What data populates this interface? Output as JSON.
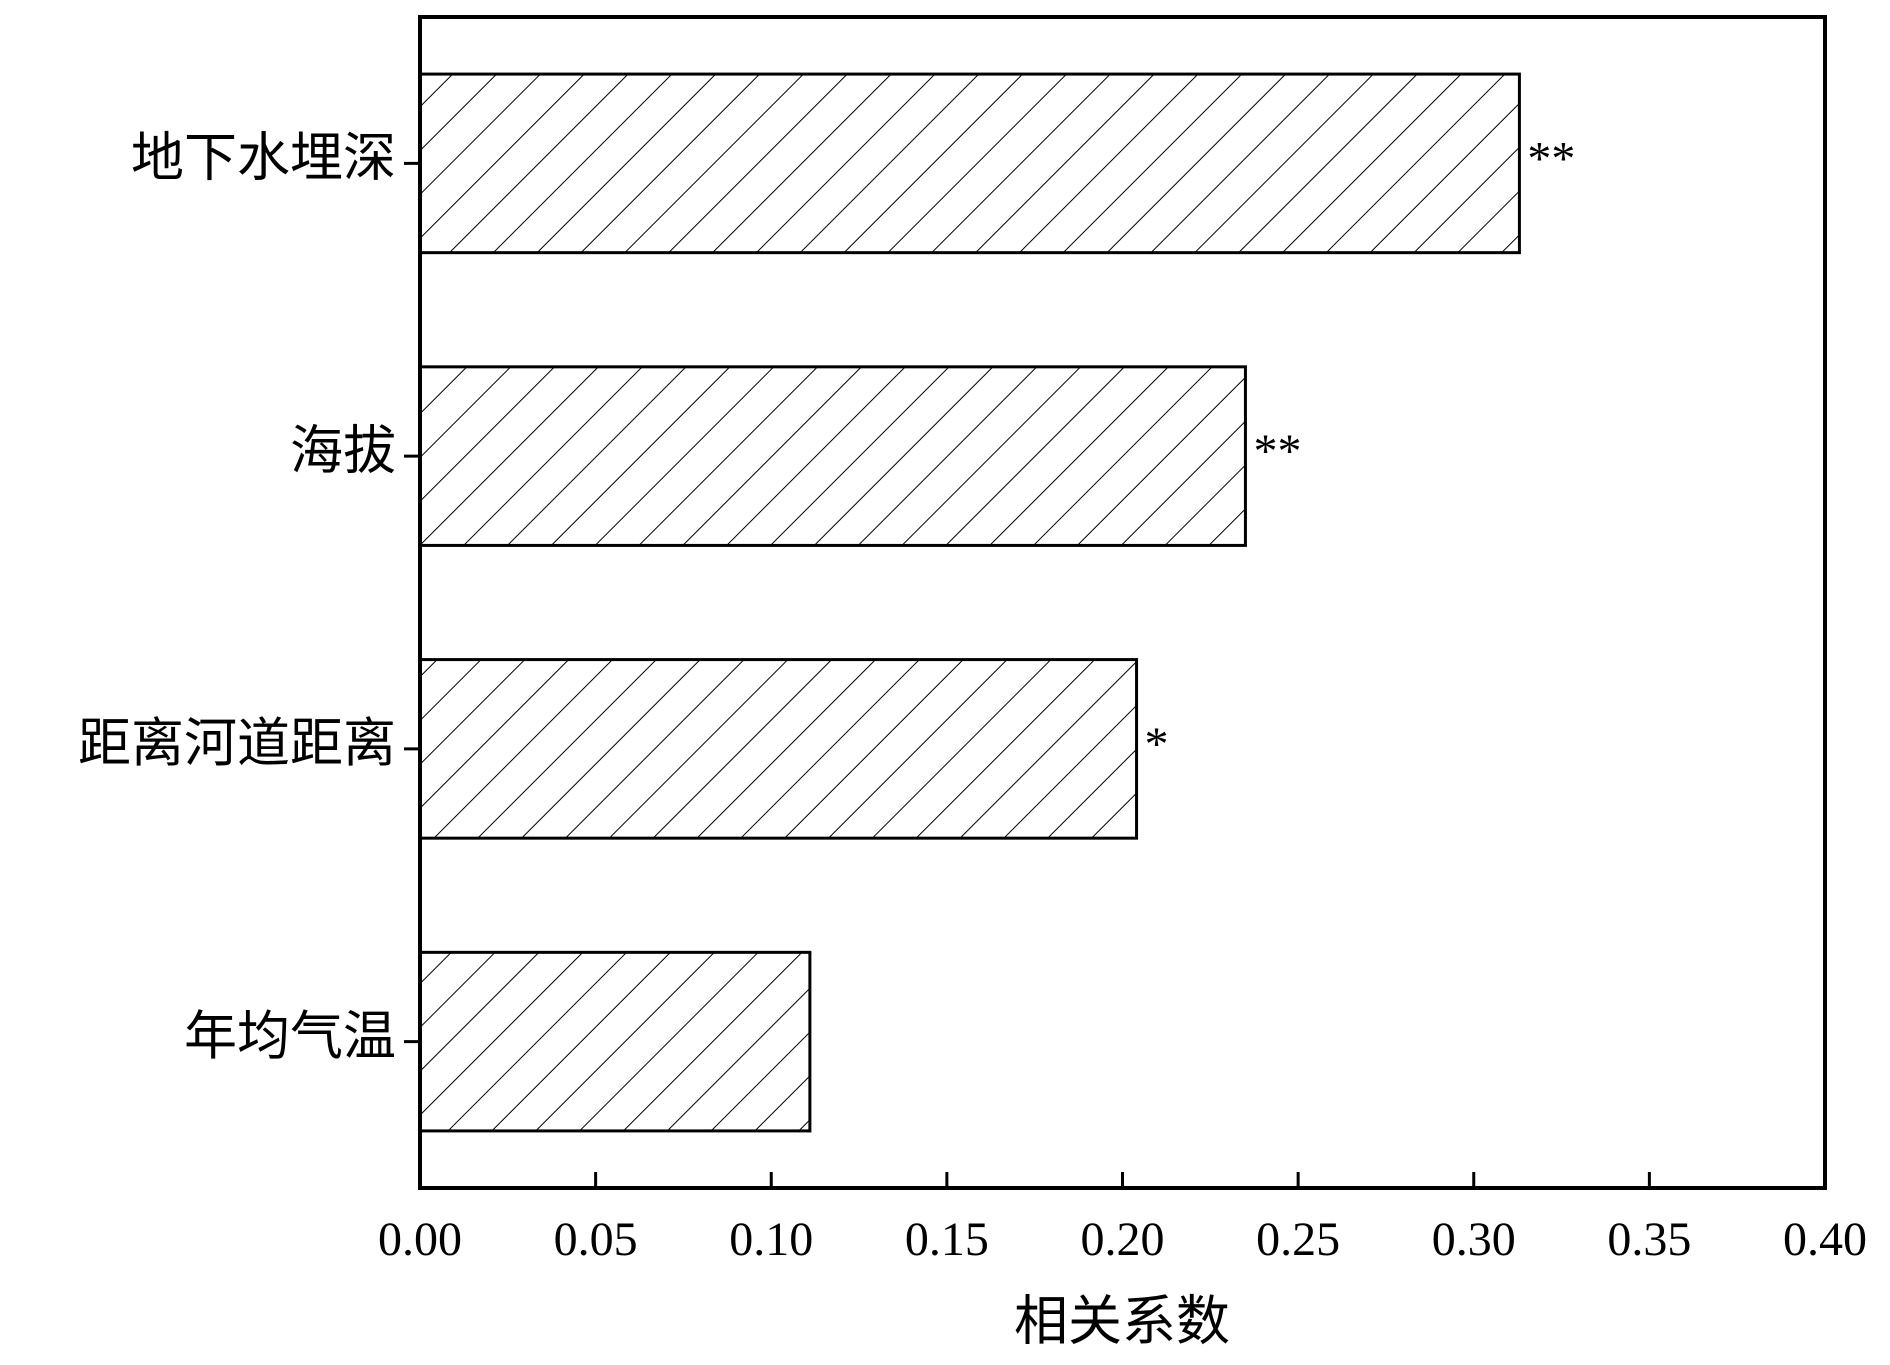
{
  "chart_data": {
    "type": "barh",
    "xlabel": "相关系数",
    "categories": [
      "地下水埋深",
      "海拔",
      "距离河道距离",
      "年均气温"
    ],
    "values": [
      0.313,
      0.235,
      0.204,
      0.111
    ],
    "annotations": [
      "**",
      "**",
      "*",
      null
    ],
    "color": "#000000",
    "xlim": [
      0,
      0.4
    ],
    "xticks": [
      {
        "value": 0,
        "label": "0.00"
      },
      {
        "value": 0.05,
        "label": "0.05"
      },
      {
        "value": 0.1,
        "label": "0.10"
      },
      {
        "value": 0.15,
        "label": "0.15"
      },
      {
        "value": 0.2,
        "label": "0.20"
      },
      {
        "value": 0.25,
        "label": "0.25"
      },
      {
        "value": 0.3,
        "label": "0.30"
      },
      {
        "value": 0.35,
        "label": "0.35"
      },
      {
        "value": 0.4,
        "label": "0.40"
      }
    ],
    "grid": false
  }
}
